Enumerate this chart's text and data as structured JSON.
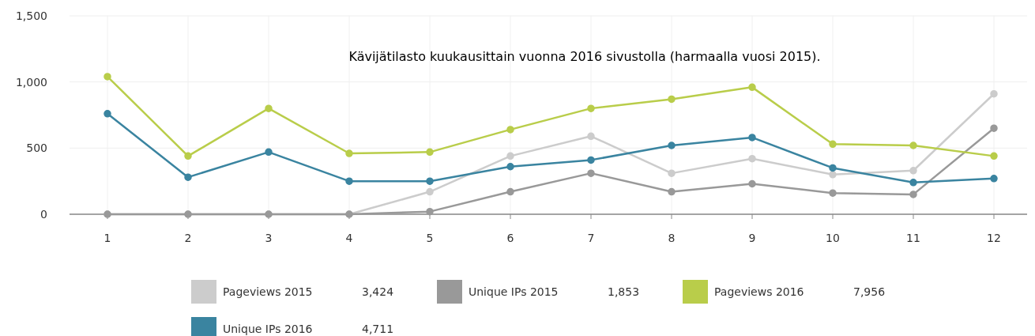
{
  "chart_data": {
    "type": "line",
    "title": "Kävijätilasto kuukausittain vuonna 2016 sivustolla (harmaalla vuosi 2015).",
    "categories": [
      "1",
      "2",
      "3",
      "4",
      "5",
      "6",
      "7",
      "8",
      "9",
      "10",
      "11",
      "12"
    ],
    "series": [
      {
        "name": "Pageviews 2015",
        "color": "#cccccc",
        "values": [
          0,
          0,
          0,
          0,
          170,
          440,
          590,
          310,
          420,
          300,
          330,
          910
        ]
      },
      {
        "name": "Unique IPs 2015",
        "color": "#999999",
        "values": [
          0,
          0,
          0,
          0,
          20,
          170,
          310,
          170,
          230,
          160,
          150,
          650
        ]
      },
      {
        "name": "Pageviews 2016",
        "color": "#b9cd4a",
        "values": [
          1040,
          440,
          800,
          460,
          470,
          640,
          800,
          870,
          960,
          530,
          520,
          440
        ]
      },
      {
        "name": "Unique IPs 2016",
        "color": "#3a84a0",
        "values": [
          760,
          280,
          470,
          250,
          250,
          360,
          410,
          520,
          580,
          350,
          240,
          270
        ]
      }
    ],
    "annotations": [
      "3,424",
      "1,853",
      "7,956",
      "4,711"
    ],
    "ylim": [
      0,
      1500
    ],
    "yticks": [
      {
        "value": 0,
        "label": "0"
      },
      {
        "value": 500,
        "label": "500"
      },
      {
        "value": 1000,
        "label": "1,000"
      },
      {
        "value": 1500,
        "label": "1,500"
      }
    ],
    "grid": true,
    "legend": "bottom",
    "marker": "circle",
    "line_style": "solid"
  }
}
